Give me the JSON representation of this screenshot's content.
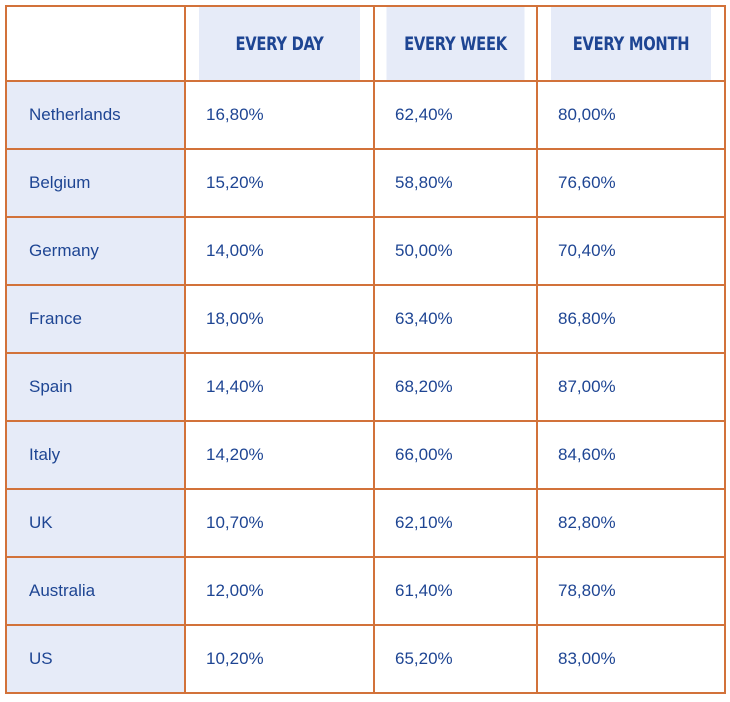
{
  "table": {
    "headers": [
      "",
      "EVERY DAY",
      "EVERY WEEK",
      "EVERY MONTH"
    ],
    "rows": [
      {
        "country": "Netherlands",
        "every_day": "16,80%",
        "every_week": "62,40%",
        "every_month": "80,00%"
      },
      {
        "country": "Belgium",
        "every_day": "15,20%",
        "every_week": "58,80%",
        "every_month": "76,60%"
      },
      {
        "country": "Germany",
        "every_day": "14,00%",
        "every_week": "50,00%",
        "every_month": "70,40%"
      },
      {
        "country": "France",
        "every_day": "18,00%",
        "every_week": "63,40%",
        "every_month": "86,80%"
      },
      {
        "country": "Spain",
        "every_day": "14,40%",
        "every_week": "68,20%",
        "every_month": "87,00%"
      },
      {
        "country": "Italy",
        "every_day": "14,20%",
        "every_week": "66,00%",
        "every_month": "84,60%"
      },
      {
        "country": "UK",
        "every_day": "10,70%",
        "every_week": "62,10%",
        "every_month": "82,80%"
      },
      {
        "country": "Australia",
        "every_day": "12,00%",
        "every_week": "61,40%",
        "every_month": "78,80%"
      },
      {
        "country": "US",
        "every_day": "10,20%",
        "every_week": "65,20%",
        "every_month": "83,00%"
      }
    ]
  },
  "colors": {
    "border": "#d2723a",
    "header_fill": "#e6ebf8",
    "text": "#1e4593"
  }
}
